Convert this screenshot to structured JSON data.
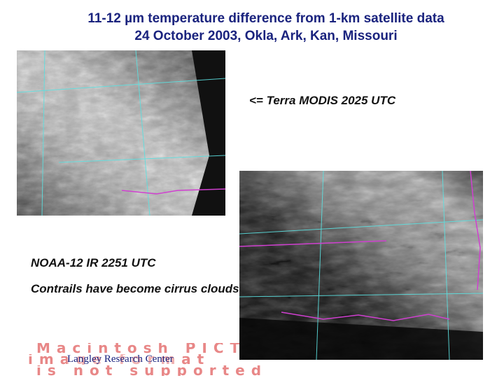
{
  "title": {
    "line1": "11-12 µm temperature difference from 1-km satellite data",
    "line2": "24 October 2003, Okla, Ark, Kan, Missouri"
  },
  "images": {
    "terra_caption": "<= Terra MODIS 2025 UTC",
    "noaa_caption": "NOAA-12  IR 2251 UTC",
    "cirrus_note": "Contrails have become cirrus clouds"
  },
  "footer": {
    "pict_notice_1": "Macintosh PICT",
    "pict_notice_2": "image format",
    "pict_notice_3": "is not supported",
    "brand": "Langley Research Center"
  },
  "colors": {
    "title": "#1a237e",
    "boundary_cyan": "#5ce0e0",
    "boundary_magenta": "#d040d0",
    "pict_red": "#e57373"
  }
}
